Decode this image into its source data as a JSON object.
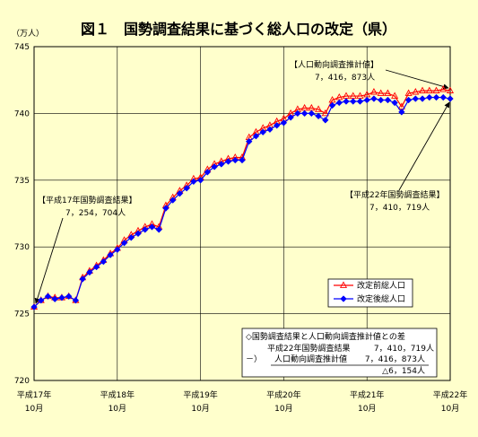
{
  "chart_data": {
    "type": "line",
    "title": "図１　国勢調査結果に基づく総人口の改定（県）",
    "ylabel": "（万人）",
    "ylim": [
      720,
      745
    ],
    "yticks": [
      "720",
      "725",
      "730",
      "735",
      "740",
      "745"
    ],
    "grid": true,
    "legend_position": "center-right",
    "xtick_labels": [
      {
        "top": "平成17年",
        "bottom": "10月"
      },
      {
        "top": "平成18年",
        "bottom": "10月"
      },
      {
        "top": "平成19年",
        "bottom": "10月"
      },
      {
        "top": "平成20年",
        "bottom": "10月"
      },
      {
        "top": "平成21年",
        "bottom": "10月"
      },
      {
        "top": "平成22年",
        "bottom": "10月"
      }
    ],
    "x_count": 61,
    "series": [
      {
        "name": "改定前総人口",
        "color": "#ff0000",
        "marker": "triangle",
        "values": [
          725.5,
          726.0,
          726.3,
          726.2,
          726.2,
          726.3,
          726.0,
          727.7,
          728.2,
          728.6,
          729.0,
          729.5,
          729.9,
          730.5,
          730.9,
          731.2,
          731.5,
          731.7,
          731.5,
          733.1,
          733.7,
          734.2,
          734.6,
          735.1,
          735.2,
          735.8,
          736.2,
          736.4,
          736.6,
          736.7,
          736.7,
          738.2,
          738.6,
          738.9,
          739.1,
          739.4,
          739.6,
          740.0,
          740.3,
          740.4,
          740.4,
          740.3,
          740.0,
          741.0,
          741.2,
          741.3,
          741.3,
          741.3,
          741.4,
          741.6,
          741.5,
          741.5,
          741.3,
          740.5,
          741.5,
          741.6,
          741.7,
          741.7,
          741.7,
          741.8,
          741.7
        ]
      },
      {
        "name": "改定後総人口",
        "color": "#0000ff",
        "marker": "diamond",
        "values": [
          725.5,
          726.0,
          726.3,
          726.1,
          726.2,
          726.3,
          726.0,
          727.6,
          728.1,
          728.5,
          728.9,
          729.4,
          729.8,
          730.3,
          730.7,
          731.0,
          731.3,
          731.5,
          731.3,
          732.9,
          733.5,
          734.0,
          734.4,
          734.9,
          735.0,
          735.6,
          736.0,
          736.2,
          736.4,
          736.5,
          736.5,
          737.9,
          738.3,
          738.6,
          738.8,
          739.1,
          739.3,
          739.7,
          740.0,
          740.0,
          740.0,
          739.8,
          739.5,
          740.6,
          740.8,
          740.9,
          740.9,
          740.9,
          741.0,
          741.1,
          741.0,
          741.0,
          740.8,
          740.1,
          741.0,
          741.1,
          741.1,
          741.2,
          741.2,
          741.2,
          741.1
        ]
      }
    ],
    "annotations": [
      {
        "lines": [
          "【平成17年国勢調査結果】",
          "7，254，704人"
        ]
      },
      {
        "lines": [
          "【人口動向調査推計値】",
          "7，416，873人"
        ]
      },
      {
        "lines": [
          "【平成22年国勢調査結果】",
          "7，410，719人"
        ]
      }
    ],
    "diff_box": {
      "heading": "◇国勢調査結果と人口動向調査推計値との差",
      "rows": [
        {
          "prefix": "",
          "label": "平成22年国勢調査結果",
          "value": "7，410，719人"
        },
        {
          "prefix": "－）",
          "label": "人口動向調査推計値",
          "value": "7，416，873人"
        },
        {
          "prefix": "",
          "label": "",
          "value": "△6，154人"
        }
      ]
    }
  }
}
